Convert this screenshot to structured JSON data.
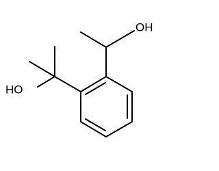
{
  "atoms": {
    "upper_hydroxyl": "OH",
    "lower_hydroxyl": "HO"
  }
}
